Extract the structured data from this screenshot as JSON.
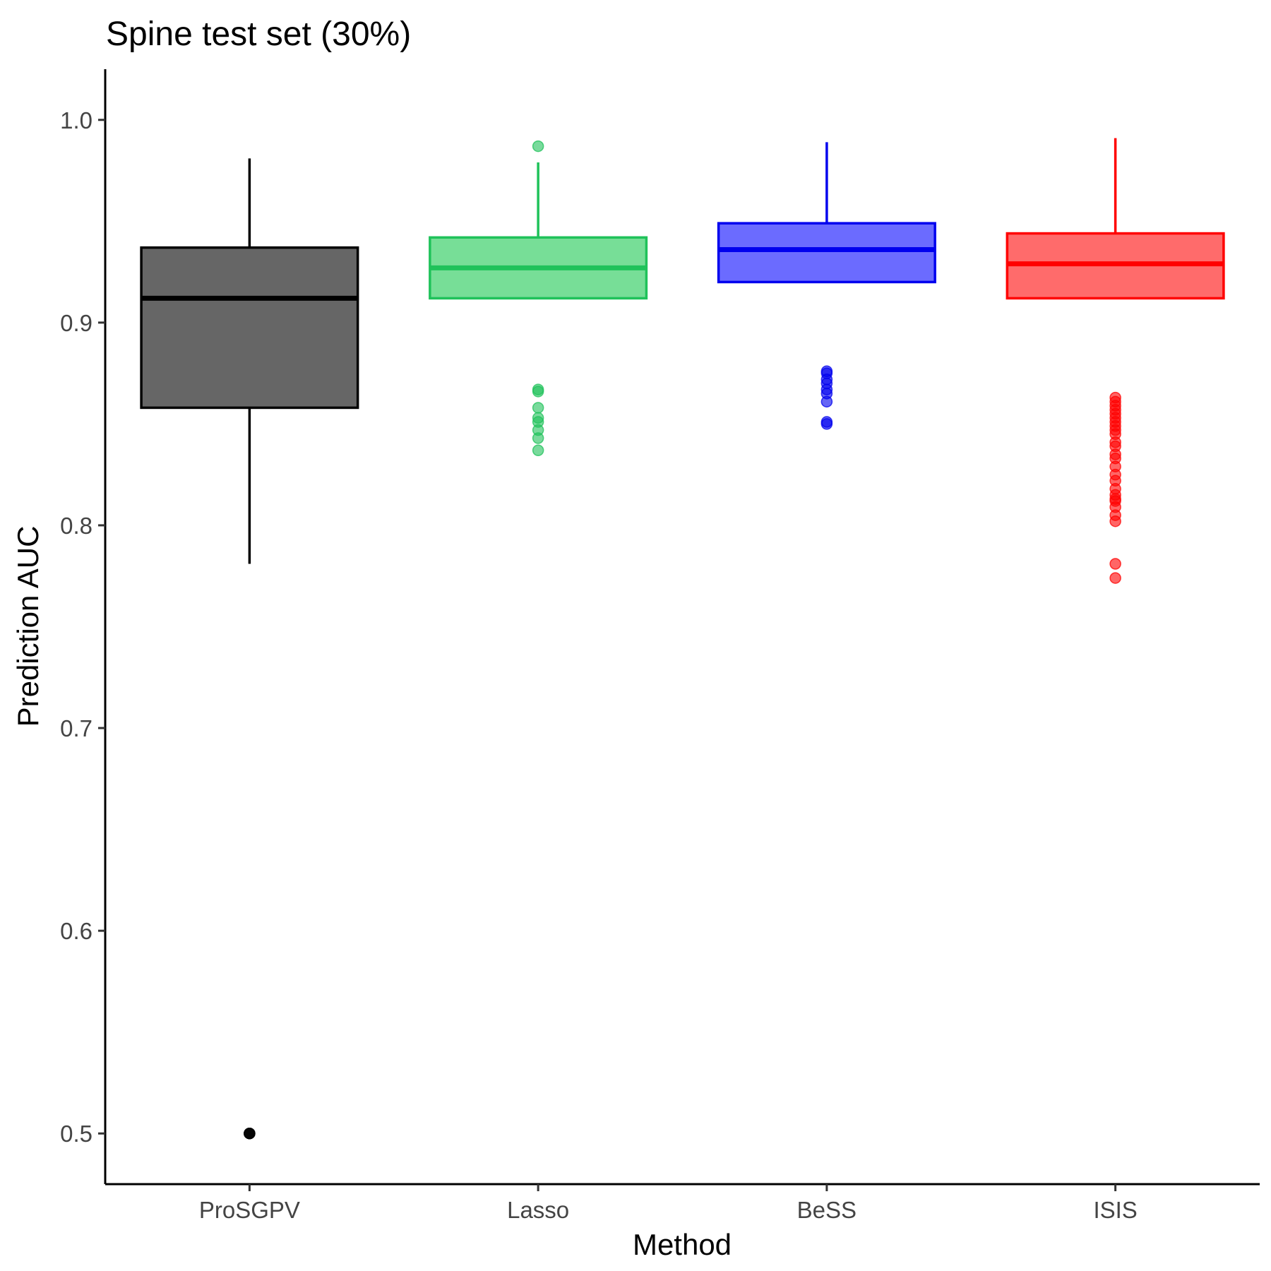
{
  "chart_data": {
    "type": "boxplot",
    "title": "Spine test set (30%)",
    "xlabel": "Method",
    "ylabel": "Prediction AUC",
    "ylim": [
      0.475,
      1.025
    ],
    "yticks": [
      0.5,
      0.6,
      0.7,
      0.8,
      0.9,
      1.0
    ],
    "ytick_labels": [
      "0.5",
      "0.6",
      "0.7",
      "0.8",
      "0.9",
      "1.0"
    ],
    "grid": false,
    "legend": "none",
    "categories": [
      "ProSGPV",
      "Lasso",
      "BeSS",
      "ISIS"
    ],
    "series": [
      {
        "category": "ProSGPV",
        "color": "#000000",
        "fill": "#666666",
        "whisker_low": 0.781,
        "q1": 0.858,
        "median": 0.912,
        "q3": 0.937,
        "whisker_high": 0.981,
        "outliers": [
          0.5,
          0.5,
          0.5,
          0.5
        ]
      },
      {
        "category": "Lasso",
        "color": "#1fc25a",
        "fill": "#77de97",
        "whisker_low": 0.912,
        "q1": 0.912,
        "median": 0.927,
        "q3": 0.942,
        "whisker_high": 0.979,
        "outliers": [
          0.987,
          0.867,
          0.866,
          0.858,
          0.853,
          0.851,
          0.847,
          0.843,
          0.837
        ]
      },
      {
        "category": "BeSS",
        "color": "#0000ee",
        "fill": "#6b6bff",
        "whisker_low": 0.92,
        "q1": 0.92,
        "median": 0.936,
        "q3": 0.949,
        "whisker_high": 0.989,
        "outliers": [
          0.876,
          0.875,
          0.872,
          0.87,
          0.867,
          0.865,
          0.861,
          0.851,
          0.85
        ]
      },
      {
        "category": "ISIS",
        "color": "#ff0000",
        "fill": "#ff6b6b",
        "whisker_low": 0.912,
        "q1": 0.912,
        "median": 0.929,
        "q3": 0.944,
        "whisker_high": 0.991,
        "outliers": [
          0.863,
          0.861,
          0.859,
          0.857,
          0.855,
          0.853,
          0.851,
          0.849,
          0.847,
          0.845,
          0.841,
          0.839,
          0.835,
          0.833,
          0.829,
          0.825,
          0.822,
          0.818,
          0.815,
          0.813,
          0.812,
          0.809,
          0.805,
          0.802,
          0.781,
          0.774
        ]
      }
    ]
  }
}
